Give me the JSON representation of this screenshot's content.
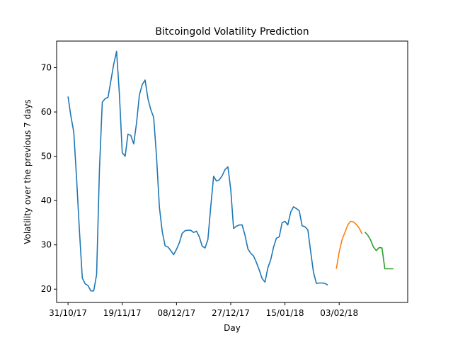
{
  "chart_data": {
    "type": "line",
    "title": "Bitcoingold Volatility Prediction",
    "xlabel": "Day",
    "ylabel": "Volatility over the previous 7 days",
    "x_tick_labels": [
      "31/10/17",
      "19/11/17",
      "08/12/17",
      "27/12/17",
      "15/01/18",
      "03/02/18"
    ],
    "x_tick_days": [
      0,
      19,
      38,
      57,
      76,
      95
    ],
    "xlim": [
      -4,
      119
    ],
    "yticks": [
      20,
      30,
      40,
      50,
      60,
      70
    ],
    "ylim": [
      17,
      76
    ],
    "grid": false,
    "series": [
      {
        "color": "#1f77b4",
        "x": [
          0,
          1,
          2,
          3,
          4,
          5,
          6,
          7,
          8,
          9,
          10,
          11,
          12,
          13,
          14,
          15,
          16,
          17,
          18,
          19,
          20,
          21,
          22,
          23,
          24,
          25,
          26,
          27,
          28,
          29,
          30,
          31,
          32,
          33,
          34,
          35,
          36,
          37,
          38,
          39,
          40,
          41,
          42,
          43,
          44,
          45,
          46,
          47,
          48,
          49,
          50,
          51,
          52,
          53,
          54,
          55,
          56,
          57,
          58,
          59,
          60,
          61,
          62,
          63,
          64,
          65,
          66,
          67,
          68,
          69,
          70,
          71,
          72,
          73,
          74,
          75,
          76,
          77,
          78,
          79,
          80,
          81,
          82,
          83,
          84,
          85,
          86,
          87,
          88,
          89,
          90,
          91
        ],
        "y": [
          63.5,
          59,
          55.5,
          45,
          33,
          22.5,
          21.2,
          20.8,
          19.6,
          19.6,
          23.3,
          47,
          62.2,
          63,
          63.3,
          67,
          70.8,
          73.7,
          64,
          50.8,
          50,
          55,
          54.7,
          52.8,
          57.5,
          63.8,
          66.2,
          67.2,
          63,
          60.5,
          58.8,
          50,
          38.5,
          33,
          29.8,
          29.5,
          28.7,
          27.8,
          29,
          30.5,
          32.6,
          33.2,
          33.3,
          33.3,
          32.8,
          33.1,
          31.8,
          29.7,
          29.3,
          31.2,
          38.7,
          45.5,
          44.4,
          44.7,
          45.6,
          47,
          47.6,
          42.5,
          33.7,
          34.2,
          34.5,
          34.5,
          32.2,
          29.1,
          28.1,
          27.5,
          26,
          24.3,
          22.4,
          21.6,
          24.8,
          26.6,
          29.5,
          31.5,
          31.8,
          35,
          35.3,
          34.5,
          37.4,
          38.6,
          38.2,
          37.7,
          34.3,
          34.1,
          33.4,
          28.5,
          23.8,
          21.3,
          21.4,
          21.4,
          21.3,
          20.9
        ]
      },
      {
        "color": "#ff7f0e",
        "x": [
          94,
          95,
          96,
          97,
          98,
          99,
          100,
          101,
          102,
          103
        ],
        "y": [
          24.6,
          28.4,
          31.2,
          32.8,
          34.5,
          35.3,
          35.2,
          34.6,
          33.8,
          32.5
        ]
      },
      {
        "color": "#2ca02c",
        "x": [
          104,
          105,
          106,
          107,
          108,
          109,
          110,
          111,
          112,
          113,
          114
        ],
        "y": [
          32.9,
          32.2,
          31.1,
          29.5,
          28.7,
          29.4,
          29.3,
          24.6,
          24.6,
          24.6,
          24.6
        ]
      }
    ]
  }
}
